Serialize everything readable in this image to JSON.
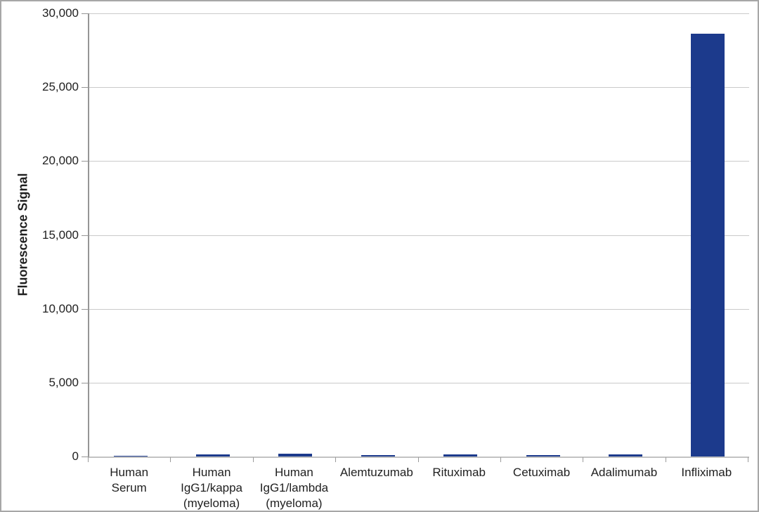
{
  "chart_data": {
    "type": "bar",
    "title": "",
    "xlabel": "",
    "ylabel": "Fluorescence Signal",
    "ylim": [
      0,
      30000
    ],
    "yticks": [
      0,
      5000,
      10000,
      15000,
      20000,
      25000,
      30000
    ],
    "ytick_labels": [
      "0",
      "5,000",
      "10,000",
      "15,000",
      "20,000",
      "25,000",
      "30,000"
    ],
    "categories": [
      "Human\nSerum",
      "Human\nIgG1/kappa\n(myeloma)",
      "Human\nIgG1/lambda\n(myeloma)",
      "Alemtuzumab",
      "Rituximab",
      "Cetuximab",
      "Adalimumab",
      "Infliximab"
    ],
    "values": [
      70,
      130,
      200,
      110,
      130,
      105,
      135,
      28600
    ],
    "grid": "horizontal",
    "legend": "none",
    "bar_color": "#1c3a8c"
  },
  "colors": {
    "background": "#ffffff",
    "frame_border": "#a7a7a7",
    "gridline": "#cacaca",
    "y_axis": "#969696",
    "x_axis": "#c2c2c2",
    "text": "#1f1f1f"
  }
}
